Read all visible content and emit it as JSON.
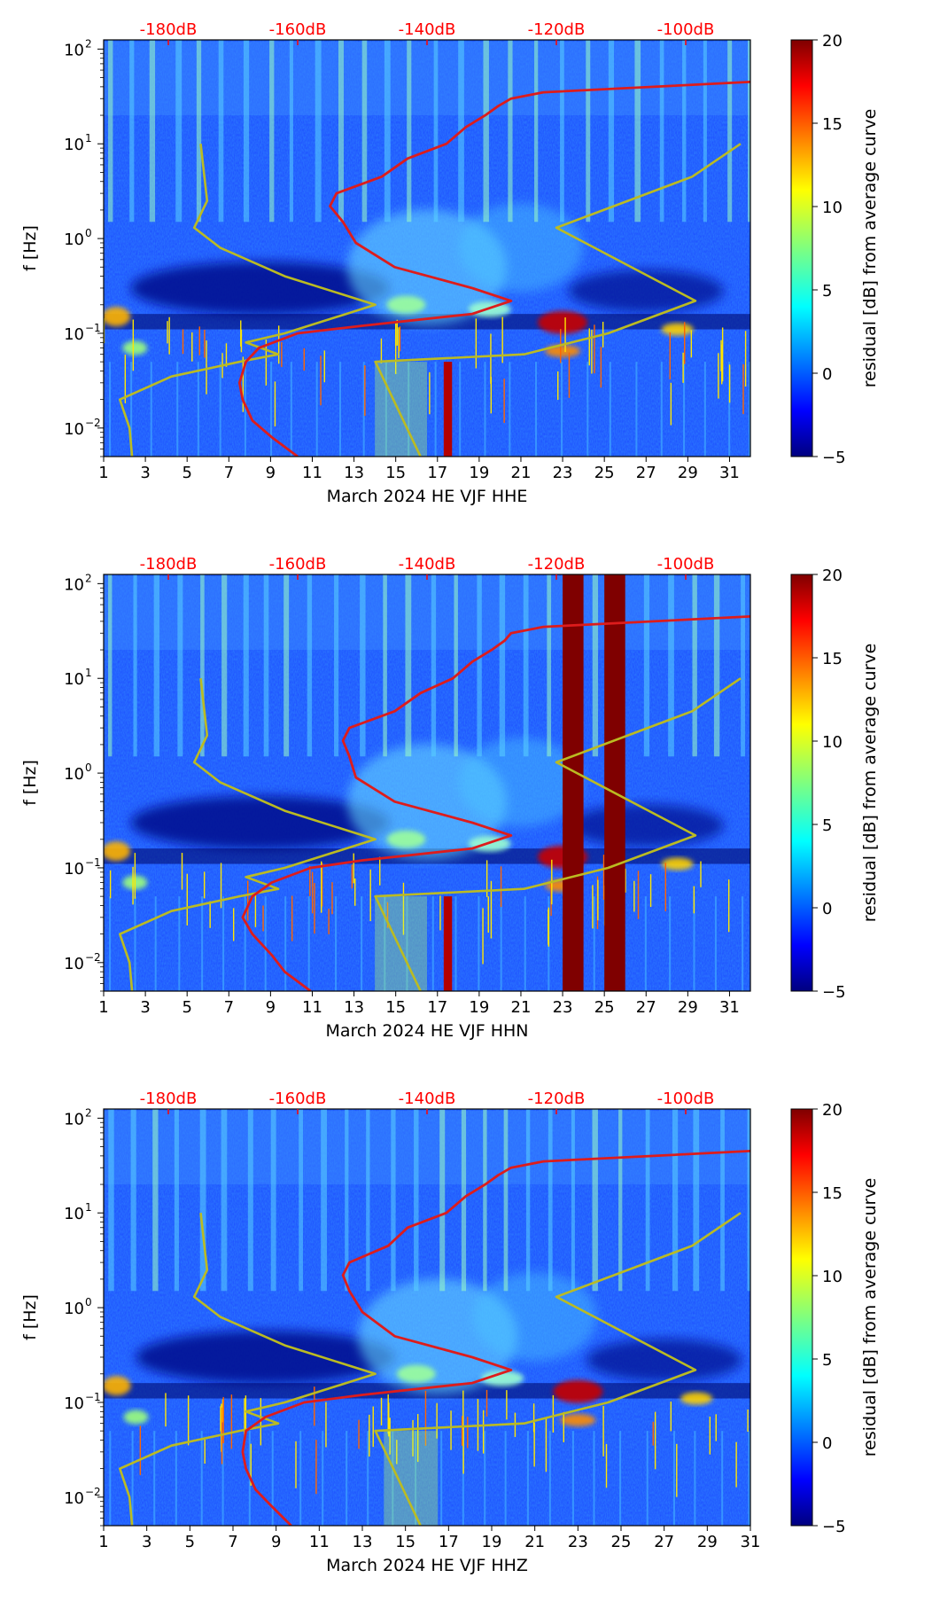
{
  "colors": {
    "noise_model_curves": "#bbbb22",
    "average_curve": "#dd1c1c",
    "db_axis": "#ff0000",
    "colormap": [
      "#00007f",
      "#0000ff",
      "#007fff",
      "#00ffff",
      "#7fff7f",
      "#ffff00",
      "#ff7f00",
      "#ff0000",
      "#7f0000"
    ]
  },
  "chart_data": [
    {
      "type": "heatmap",
      "station": "HE VJF",
      "channel": "HHE",
      "xlabel": "March 2024 HE VJF  HHE",
      "ylabel": "f [Hz]",
      "xlim": [
        1,
        32
      ],
      "ylim": [
        0.005,
        125
      ],
      "x_ticks": [
        "1",
        "3",
        "5",
        "7",
        "9",
        "11",
        "13",
        "15",
        "17",
        "19",
        "21",
        "23",
        "25",
        "27",
        "29",
        "31"
      ],
      "y_ticks": [
        "10",
        "10",
        "10",
        "10",
        "10"
      ],
      "y_tick_exponents": [
        "2",
        "1",
        "0",
        "−1",
        "−2"
      ],
      "db_axis": {
        "ticks": [
          "-180dB",
          "-160dB",
          "-140dB",
          "-120dB",
          "-100dB"
        ],
        "range": [
          -190,
          -90
        ]
      },
      "colorbar": {
        "label": "residual [dB] from average curve",
        "range": [
          -5,
          20
        ],
        "ticks": [
          "20",
          "15",
          "10",
          "5",
          "0",
          "−5"
        ]
      },
      "noise_model_low_db": [
        [
          0.005,
          -185.6
        ],
        [
          0.01,
          -186.0
        ],
        [
          0.02,
          -187.5
        ],
        [
          0.035,
          -179.5
        ],
        [
          0.05,
          -169.0
        ],
        [
          0.06,
          -163.0
        ],
        [
          0.08,
          -168.0
        ],
        [
          0.1,
          -162.0
        ],
        [
          0.2,
          -148.0
        ],
        [
          0.4,
          -162.0
        ],
        [
          0.8,
          -172.0
        ],
        [
          1.3,
          -176.0
        ],
        [
          2.5,
          -174.0
        ],
        [
          10.0,
          -175.0
        ]
      ],
      "noise_model_high_db": [
        [
          0.005,
          -141.0
        ],
        [
          0.05,
          -148.0
        ],
        [
          0.06,
          -125.0
        ],
        [
          0.1,
          -112.0
        ],
        [
          0.22,
          -98.5
        ],
        [
          1.3,
          -120.0
        ],
        [
          4.5,
          -99.0
        ],
        [
          10.0,
          -91.5
        ]
      ],
      "average_curve_db": [
        [
          0.005,
          -160.0
        ],
        [
          0.008,
          -164.0
        ],
        [
          0.012,
          -167.0
        ],
        [
          0.02,
          -168.5
        ],
        [
          0.03,
          -169.0
        ],
        [
          0.05,
          -168.0
        ],
        [
          0.07,
          -166.0
        ],
        [
          0.1,
          -160.0
        ],
        [
          0.12,
          -150.0
        ],
        [
          0.16,
          -133.0
        ],
        [
          0.22,
          -127.0
        ],
        [
          0.3,
          -133.0
        ],
        [
          0.5,
          -145.0
        ],
        [
          0.9,
          -151.0
        ],
        [
          1.5,
          -153.0
        ],
        [
          2.2,
          -155.0
        ],
        [
          3.0,
          -154.0
        ],
        [
          4.5,
          -147.0
        ],
        [
          7.0,
          -143.0
        ],
        [
          10.0,
          -137.0
        ],
        [
          15.0,
          -134.0
        ],
        [
          20.0,
          -131.0
        ],
        [
          25.0,
          -129.0
        ],
        [
          30.0,
          -127.0
        ],
        [
          35.0,
          -122.0
        ],
        [
          45.0,
          -90.0
        ]
      ],
      "features": {
        "low_freq_band_days": [
          17.3,
          17.7
        ],
        "microseism_peak_day": 23,
        "microseism_peak_hz": 0.13
      }
    },
    {
      "type": "heatmap",
      "station": "HE VJF",
      "channel": "HHN",
      "xlabel": "March 2024 HE VJF  HHN",
      "ylabel": "f [Hz]",
      "xlim": [
        1,
        32
      ],
      "ylim": [
        0.005,
        125
      ],
      "x_ticks": [
        "1",
        "3",
        "5",
        "7",
        "9",
        "11",
        "13",
        "15",
        "17",
        "19",
        "21",
        "23",
        "25",
        "27",
        "29",
        "31"
      ],
      "y_ticks": [
        "10",
        "10",
        "10",
        "10",
        "10"
      ],
      "y_tick_exponents": [
        "2",
        "1",
        "0",
        "−1",
        "−2"
      ],
      "db_axis": {
        "ticks": [
          "-180dB",
          "-160dB",
          "-140dB",
          "-120dB",
          "-100dB"
        ],
        "range": [
          -190,
          -90
        ]
      },
      "colorbar": {
        "label": "residual [dB] from average curve",
        "range": [
          -5,
          20
        ],
        "ticks": [
          "20",
          "15",
          "10",
          "5",
          "0",
          "−5"
        ]
      },
      "noise_model_low_db": [
        [
          0.005,
          -185.6
        ],
        [
          0.01,
          -186.0
        ],
        [
          0.02,
          -187.5
        ],
        [
          0.035,
          -179.5
        ],
        [
          0.05,
          -169.0
        ],
        [
          0.06,
          -163.0
        ],
        [
          0.08,
          -168.0
        ],
        [
          0.1,
          -162.0
        ],
        [
          0.2,
          -148.0
        ],
        [
          0.4,
          -162.0
        ],
        [
          0.8,
          -172.0
        ],
        [
          1.3,
          -176.0
        ],
        [
          2.5,
          -174.0
        ],
        [
          10.0,
          -175.0
        ]
      ],
      "noise_model_high_db": [
        [
          0.005,
          -141.0
        ],
        [
          0.05,
          -148.0
        ],
        [
          0.06,
          -125.0
        ],
        [
          0.1,
          -112.0
        ],
        [
          0.22,
          -98.5
        ],
        [
          1.3,
          -120.0
        ],
        [
          4.5,
          -99.0
        ],
        [
          10.0,
          -91.5
        ]
      ],
      "average_curve_db": [
        [
          0.005,
          -158.0
        ],
        [
          0.008,
          -162.0
        ],
        [
          0.012,
          -164.0
        ],
        [
          0.02,
          -167.0
        ],
        [
          0.03,
          -168.5
        ],
        [
          0.05,
          -167.0
        ],
        [
          0.07,
          -164.0
        ],
        [
          0.1,
          -158.0
        ],
        [
          0.12,
          -150.0
        ],
        [
          0.16,
          -133.0
        ],
        [
          0.22,
          -127.0
        ],
        [
          0.3,
          -133.0
        ],
        [
          0.5,
          -145.0
        ],
        [
          0.9,
          -151.0
        ],
        [
          1.5,
          -152.0
        ],
        [
          2.2,
          -153.0
        ],
        [
          3.0,
          -152.0
        ],
        [
          4.5,
          -145.0
        ],
        [
          7.0,
          -141.0
        ],
        [
          10.0,
          -136.0
        ],
        [
          15.0,
          -133.0
        ],
        [
          20.0,
          -130.0
        ],
        [
          25.0,
          -128.0
        ],
        [
          30.0,
          -127.0
        ],
        [
          35.0,
          -122.0
        ],
        [
          45.0,
          -90.0
        ]
      ],
      "features": {
        "low_freq_band_days": [
          17.3,
          17.7
        ],
        "data_gap_days": [
          [
            23.0,
            24.0
          ],
          [
            25.0,
            26.0
          ]
        ],
        "microseism_peak_day": 23,
        "microseism_peak_hz": 0.13
      }
    },
    {
      "type": "heatmap",
      "station": "HE VJF",
      "channel": "HHZ",
      "xlabel": "March 2024 HE VJF  HHZ",
      "ylabel": "f [Hz]",
      "xlim": [
        1,
        31
      ],
      "ylim": [
        0.005,
        125
      ],
      "x_ticks": [
        "1",
        "3",
        "5",
        "7",
        "9",
        "11",
        "13",
        "15",
        "17",
        "19",
        "21",
        "23",
        "25",
        "27",
        "29",
        "31"
      ],
      "y_ticks": [
        "10",
        "10",
        "10",
        "10",
        "10"
      ],
      "y_tick_exponents": [
        "2",
        "1",
        "0",
        "−1",
        "−2"
      ],
      "db_axis": {
        "ticks": [
          "-180dB",
          "-160dB",
          "-140dB",
          "-120dB",
          "-100dB"
        ],
        "range": [
          -190,
          -90
        ]
      },
      "colorbar": {
        "label": "residual [dB] from average curve",
        "range": [
          -5,
          20
        ],
        "ticks": [
          "20",
          "15",
          "10",
          "5",
          "0",
          "−5"
        ]
      },
      "noise_model_low_db": [
        [
          0.005,
          -185.6
        ],
        [
          0.01,
          -186.0
        ],
        [
          0.02,
          -187.5
        ],
        [
          0.035,
          -179.5
        ],
        [
          0.05,
          -169.0
        ],
        [
          0.06,
          -163.0
        ],
        [
          0.08,
          -168.0
        ],
        [
          0.1,
          -162.0
        ],
        [
          0.2,
          -148.0
        ],
        [
          0.4,
          -162.0
        ],
        [
          0.8,
          -172.0
        ],
        [
          1.3,
          -176.0
        ],
        [
          2.5,
          -174.0
        ],
        [
          10.0,
          -175.0
        ]
      ],
      "noise_model_high_db": [
        [
          0.005,
          -141.0
        ],
        [
          0.05,
          -148.0
        ],
        [
          0.06,
          -125.0
        ],
        [
          0.1,
          -112.0
        ],
        [
          0.22,
          -98.5
        ],
        [
          1.3,
          -120.0
        ],
        [
          4.5,
          -99.0
        ],
        [
          10.0,
          -91.5
        ]
      ],
      "average_curve_db": [
        [
          0.005,
          -161.0
        ],
        [
          0.008,
          -164.0
        ],
        [
          0.012,
          -166.5
        ],
        [
          0.02,
          -168.0
        ],
        [
          0.03,
          -168.5
        ],
        [
          0.05,
          -168.0
        ],
        [
          0.07,
          -165.0
        ],
        [
          0.1,
          -159.0
        ],
        [
          0.12,
          -150.0
        ],
        [
          0.16,
          -133.0
        ],
        [
          0.22,
          -127.0
        ],
        [
          0.3,
          -133.0
        ],
        [
          0.5,
          -145.0
        ],
        [
          0.9,
          -150.0
        ],
        [
          1.5,
          -152.0
        ],
        [
          2.2,
          -153.0
        ],
        [
          3.0,
          -152.0
        ],
        [
          4.5,
          -146.0
        ],
        [
          7.0,
          -143.0
        ],
        [
          10.0,
          -137.0
        ],
        [
          15.0,
          -134.0
        ],
        [
          20.0,
          -131.0
        ],
        [
          25.0,
          -129.0
        ],
        [
          30.0,
          -127.0
        ],
        [
          35.0,
          -122.0
        ],
        [
          45.0,
          -90.0
        ]
      ],
      "features": {
        "microseism_peak_day": 23,
        "microseism_peak_hz": 0.13
      }
    }
  ]
}
